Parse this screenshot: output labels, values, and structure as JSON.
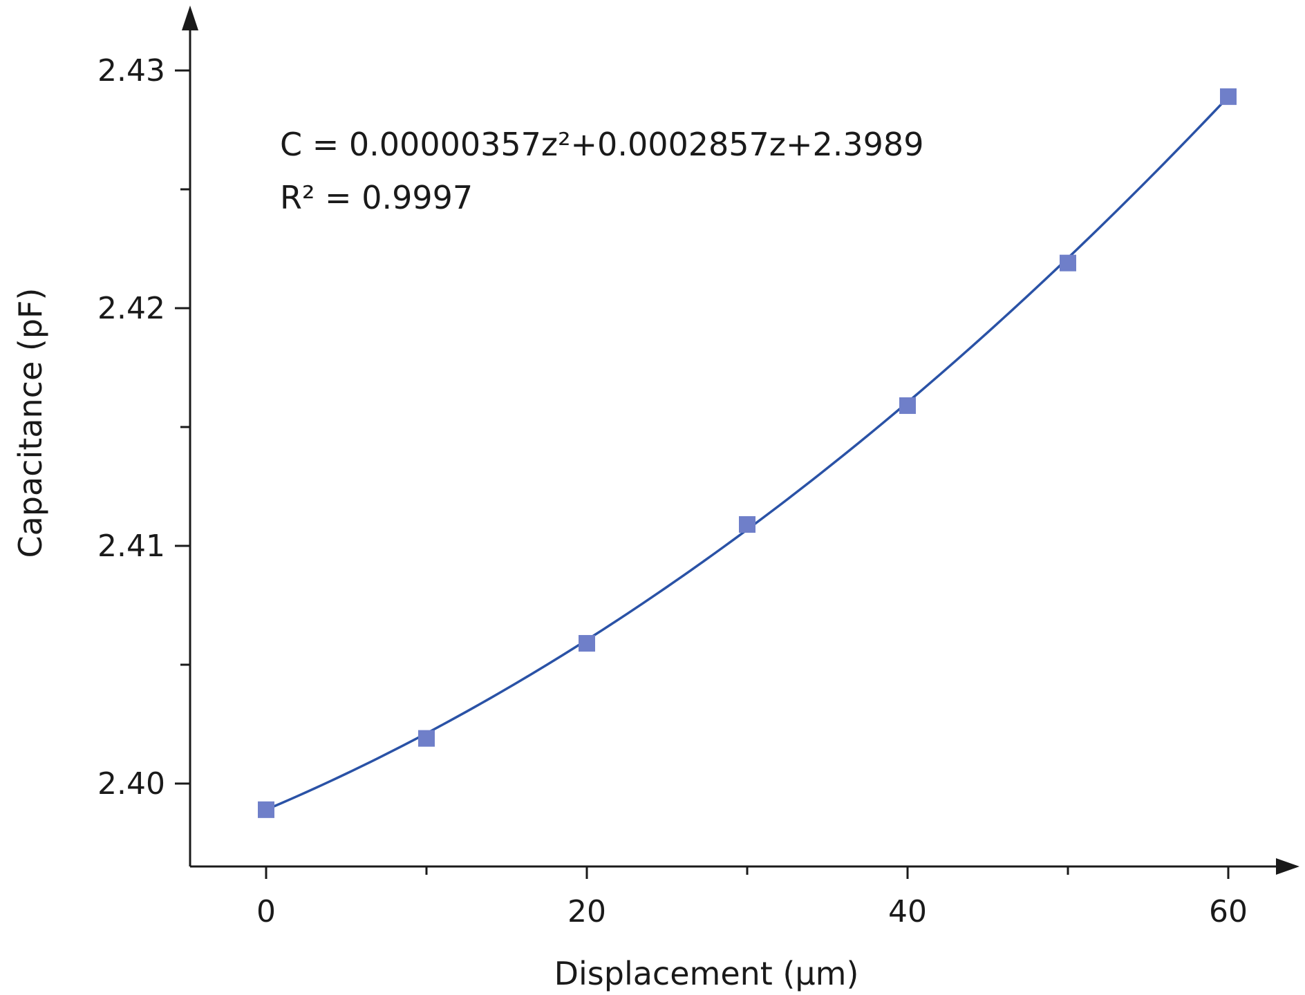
{
  "chart_data": {
    "type": "scatter",
    "title": "",
    "xlabel": "Displacement (μm)",
    "ylabel": "Capacitance (pF)",
    "xlim": [
      -5,
      65
    ],
    "ylim": [
      2.3965,
      2.4325
    ],
    "x_ticks_major": [
      0,
      20,
      40,
      60
    ],
    "x_tick_labels": [
      "0",
      "20",
      "40",
      "60"
    ],
    "x_ticks_minor": [
      10,
      30,
      50
    ],
    "y_ticks_major": [
      2.4,
      2.41,
      2.42,
      2.43
    ],
    "y_tick_labels": [
      "2.40",
      "2.41",
      "2.42",
      "2.43"
    ],
    "y_ticks_minor": [
      2.405,
      2.415,
      2.425
    ],
    "grid": false,
    "series": [
      {
        "type": "scatter",
        "marker": "square",
        "color": "#6f7fc9",
        "x": [
          0,
          10,
          20,
          30,
          40,
          50,
          60
        ],
        "y": [
          2.3989,
          2.4019,
          2.4059,
          2.4109,
          2.4159,
          2.4219,
          2.4289
        ]
      },
      {
        "type": "line",
        "color": "#2a52a6",
        "fit": {
          "model": "quadratic",
          "a": 3.57e-06,
          "b": 0.0002857,
          "c": 2.3989,
          "x_range": [
            0,
            60
          ]
        }
      }
    ],
    "annotation": {
      "equation": "C = 0.00000357z²+0.0002857z+2.3989",
      "r_squared": "R² = 0.9997"
    }
  }
}
